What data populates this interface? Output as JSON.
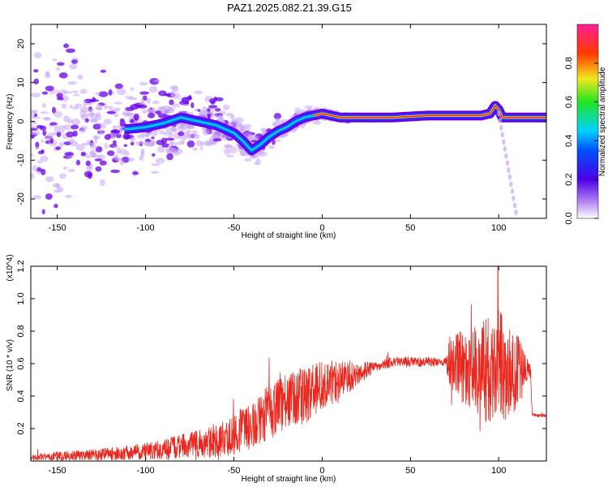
{
  "title": "PAZ1.2025.082.21.39.G15",
  "colors": {
    "blob": "#6a00e8",
    "blob_light": "#c9a6f4",
    "trend": "#00c8e0",
    "trend_hot": "#ff2020",
    "snr_line": "#e8281e",
    "axes": "#000000"
  },
  "chart_data": [
    {
      "type": "heatmap",
      "xlabel": "Height of straight line (km)",
      "ylabel": "Frequency (Hz)",
      "xlim": [
        -165,
        127
      ],
      "ylim": [
        -25,
        25
      ],
      "xticks": [
        -150,
        -100,
        -50,
        0,
        50,
        100
      ],
      "yticks": [
        -20,
        -10,
        0,
        10,
        20
      ],
      "colorbar": {
        "label": "Normalized spectral amplitude",
        "range": [
          0,
          1
        ],
        "ticks": [
          0.0,
          0.2,
          0.4,
          0.6,
          0.8
        ],
        "colormap": "rainbow (white-purple-blue-cyan-green-yellow-red-magenta)"
      },
      "dominant_frequency_trend": {
        "x": [
          -110,
          -100,
          -90,
          -80,
          -70,
          -60,
          -50,
          -45,
          -40,
          -35,
          -30,
          -25,
          -20,
          -15,
          -10,
          -5,
          0,
          10,
          20,
          40,
          60,
          80,
          90,
          95,
          98,
          100,
          102,
          110,
          127
        ],
        "y": [
          -2,
          -1.5,
          -0.5,
          1,
          0,
          -1,
          -3,
          -5,
          -7.5,
          -6,
          -4,
          -2.5,
          -1.5,
          0,
          1,
          1.5,
          2,
          1,
          1,
          1,
          1.5,
          1.5,
          1.5,
          2,
          4,
          3,
          1,
          1,
          1
        ]
      }
    },
    {
      "type": "line",
      "xlabel": "Height of straight line (km)",
      "ylabel": "SNR (10 * v/v)",
      "y_multiplier": "(x10^4)",
      "xlim": [
        -165,
        127
      ],
      "ylim": [
        0,
        1.2
      ],
      "xticks": [
        -150,
        -100,
        -50,
        0,
        50,
        100
      ],
      "yticks": [
        0.2,
        0.4,
        0.6,
        0.8,
        1.0,
        1.2
      ],
      "envelope": {
        "x": [
          -165,
          -150,
          -125,
          -100,
          -85,
          -75,
          -60,
          -50,
          -40,
          -30,
          -20,
          -10,
          0,
          10,
          20,
          30,
          40,
          50,
          60,
          70,
          72,
          80,
          90,
          95,
          100,
          105,
          110,
          115,
          118,
          119,
          122,
          127
        ],
        "y": [
          0.02,
          0.03,
          0.04,
          0.06,
          0.08,
          0.1,
          0.12,
          0.16,
          0.22,
          0.3,
          0.36,
          0.4,
          0.46,
          0.5,
          0.54,
          0.58,
          0.61,
          0.61,
          0.61,
          0.61,
          0.6,
          0.58,
          0.56,
          0.55,
          0.56,
          0.56,
          0.56,
          0.56,
          0.55,
          0.29,
          0.28,
          0.28
        ]
      },
      "fluctuation": {
        "x": [
          -165,
          -100,
          -60,
          -45,
          -30,
          -10,
          0,
          20,
          30,
          70,
          72,
          80,
          90,
          100,
          110,
          115,
          118,
          119,
          127
        ],
        "y": [
          0.02,
          0.05,
          0.1,
          0.13,
          0.17,
          0.18,
          0.16,
          0.08,
          0.03,
          0.03,
          0.14,
          0.24,
          0.3,
          0.38,
          0.24,
          0.1,
          0.04,
          0.01,
          0.01
        ]
      },
      "peak": {
        "x": 99.5,
        "y": 1.2
      }
    }
  ]
}
